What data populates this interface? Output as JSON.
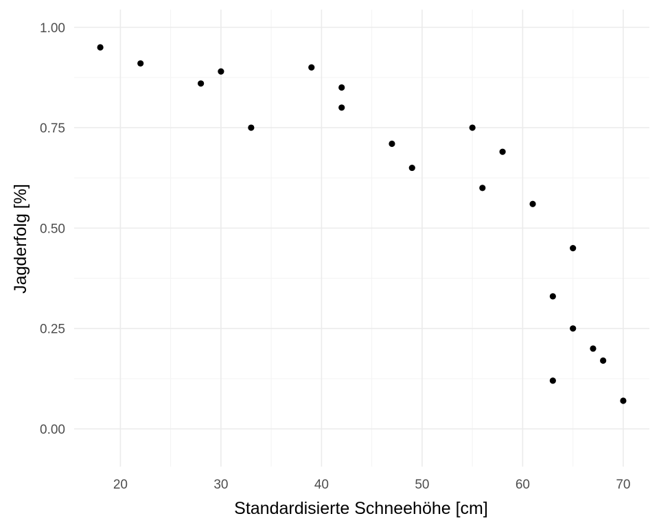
{
  "chart_data": {
    "type": "scatter",
    "title": "",
    "xlabel": "Standardisierte Schneehöhe [cm]",
    "ylabel": "Jagderfolg [%]",
    "xlim": [
      15.4,
      72.6
    ],
    "ylim": [
      -0.094,
      1.044
    ],
    "x_ticks": [
      20,
      30,
      40,
      50,
      60,
      70
    ],
    "x_tick_labels": [
      "20",
      "30",
      "40",
      "50",
      "60",
      "70"
    ],
    "y_ticks": [
      0,
      0.25,
      0.5,
      0.75,
      1.0
    ],
    "y_tick_labels": [
      "0.00",
      "0.25",
      "0.50",
      "0.75",
      "1.00"
    ],
    "grid": true,
    "legend": "none",
    "point_color": "#000000",
    "points": [
      {
        "x": 18,
        "y": 0.95
      },
      {
        "x": 22,
        "y": 0.91
      },
      {
        "x": 28,
        "y": 0.86
      },
      {
        "x": 30,
        "y": 0.89
      },
      {
        "x": 33,
        "y": 0.75
      },
      {
        "x": 39,
        "y": 0.9
      },
      {
        "x": 42,
        "y": 0.85
      },
      {
        "x": 42,
        "y": 0.8
      },
      {
        "x": 47,
        "y": 0.71
      },
      {
        "x": 49,
        "y": 0.65
      },
      {
        "x": 55,
        "y": 0.75
      },
      {
        "x": 56,
        "y": 0.6
      },
      {
        "x": 58,
        "y": 0.69
      },
      {
        "x": 61,
        "y": 0.56
      },
      {
        "x": 63,
        "y": 0.33
      },
      {
        "x": 63,
        "y": 0.12
      },
      {
        "x": 65,
        "y": 0.45
      },
      {
        "x": 65,
        "y": 0.25
      },
      {
        "x": 67,
        "y": 0.2
      },
      {
        "x": 68,
        "y": 0.17
      },
      {
        "x": 70,
        "y": 0.07
      }
    ]
  }
}
